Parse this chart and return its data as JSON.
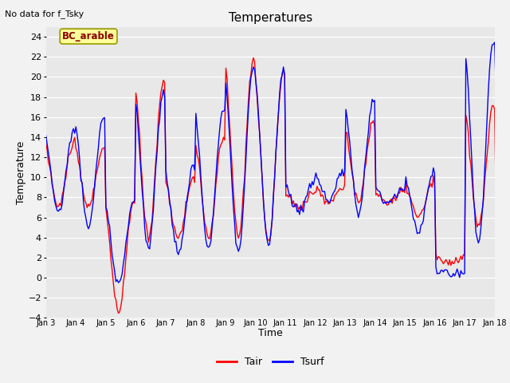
{
  "title": "Temperatures",
  "xlabel": "Time",
  "ylabel": "Temperature",
  "top_left_text": "No data for f_Tsky",
  "legend_label_text": "BC_arable",
  "ylim": [
    -4,
    25
  ],
  "yticks": [
    -4,
    -2,
    0,
    2,
    4,
    6,
    8,
    10,
    12,
    14,
    16,
    18,
    20,
    22,
    24
  ],
  "xtick_labels": [
    "Jan 3",
    "Jan 4",
    "Jan 5",
    "Jan 6",
    "Jan 7",
    "Jan 8",
    "Jan 9",
    "Jan 10",
    "Jan 11",
    "Jan 12",
    "Jan 13",
    "Jan 14",
    "Jan 15",
    "Jan 16",
    "Jan 17",
    "Jan 18"
  ],
  "tair_color": "#ff0000",
  "tsurf_color": "#0000ff",
  "plot_bg_color": "#e8e8e8",
  "fig_bg_color": "#f2f2f2",
  "grid_color": "#ffffff",
  "legend_box_facecolor": "#ffff99",
  "legend_box_edgecolor": "#999900",
  "line_width": 1.0,
  "days": 16,
  "pts_per_day": 24,
  "day_peaks_tair": [
    13.5,
    13.0,
    7.5,
    19.5,
    10.0,
    14.0,
    22.0,
    20.5,
    8.5,
    9.0,
    15.5,
    8.5,
    9.5,
    2.0,
    17.0,
    8.0
  ],
  "day_mins_tair": [
    7.0,
    7.0,
    -3.5,
    4.0,
    4.0,
    4.0,
    4.0,
    3.5,
    7.0,
    7.5,
    7.5,
    7.5,
    6.0,
    1.5,
    5.0,
    6.0
  ],
  "day_peaks_tsurf": [
    14.5,
    16.0,
    7.5,
    18.5,
    11.0,
    17.0,
    21.0,
    20.8,
    9.5,
    10.5,
    17.5,
    9.0,
    10.5,
    0.5,
    23.5,
    19.5
  ],
  "day_mins_tsurf": [
    6.5,
    5.0,
    -0.5,
    3.0,
    2.5,
    3.0,
    2.5,
    3.5,
    6.5,
    7.5,
    6.5,
    7.5,
    4.5,
    0.5,
    3.5,
    7.5
  ]
}
